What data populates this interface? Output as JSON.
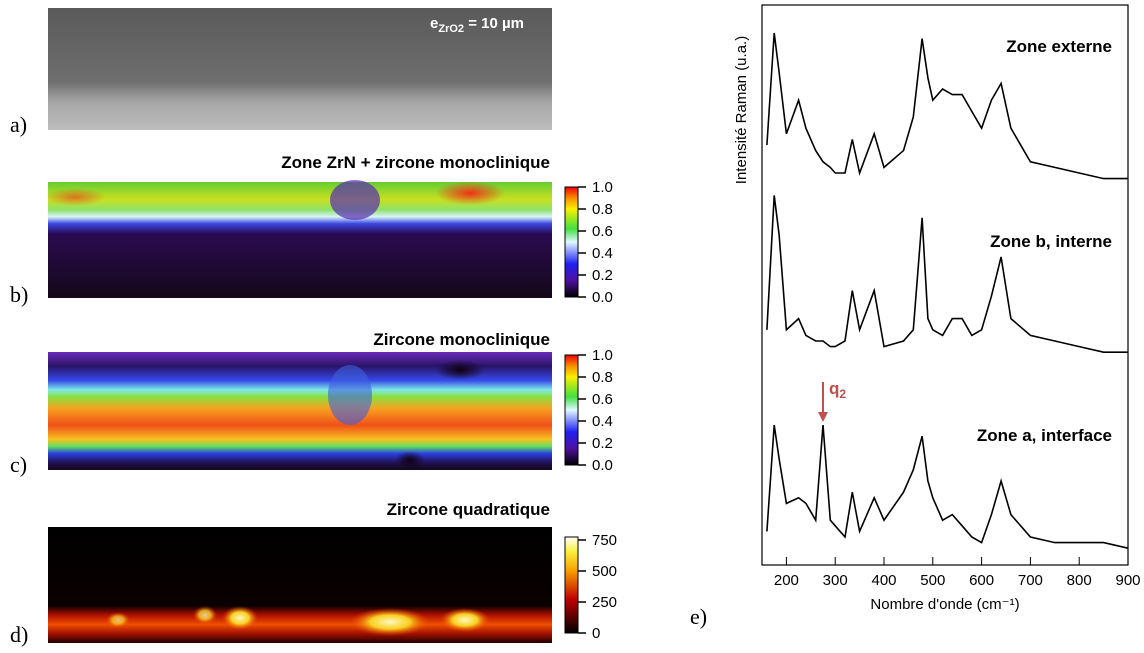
{
  "panels": {
    "labels": [
      "a)",
      "b)",
      "c)",
      "d)",
      "e)"
    ],
    "scale_label": {
      "text": "e",
      "sub": "ZrO2",
      "rest": " = 10 µm"
    }
  },
  "chart_data": [
    {
      "type": "heatmap",
      "title": "Zone ZrN + zircone monoclinique",
      "ylim": [
        0,
        1
      ],
      "yticks": [
        {
          "value": 1,
          "label": "1.0"
        },
        {
          "value": 0.8,
          "label": "0.8"
        },
        {
          "value": 0.6,
          "label": "0.6"
        },
        {
          "value": 0.4,
          "label": "0.4"
        },
        {
          "value": 0.2,
          "label": "0.2"
        },
        {
          "value": 0,
          "label": "0.0"
        }
      ]
    },
    {
      "type": "heatmap",
      "title": "Zircone monoclinique",
      "ylim": [
        0,
        1
      ],
      "yticks": [
        {
          "value": 1,
          "label": "1.0"
        },
        {
          "value": 0.8,
          "label": "0.8"
        },
        {
          "value": 0.6,
          "label": "0.6"
        },
        {
          "value": 0.4,
          "label": "0.4"
        },
        {
          "value": 0.2,
          "label": "0.2"
        },
        {
          "value": 0,
          "label": "0.0"
        }
      ]
    },
    {
      "type": "heatmap",
      "title": "Zircone quadratique",
      "ylim": [
        0,
        750
      ],
      "yticks": [
        750,
        500,
        250,
        0
      ]
    },
    {
      "type": "line",
      "xlabel": "Nombre d'onde (cm⁻¹)",
      "ylabel": "Intensité Raman (u.a.)",
      "xlim": [
        150,
        900
      ],
      "xticks": [
        200,
        300,
        400,
        500,
        600,
        700,
        800,
        900
      ],
      "ylim": [
        0,
        100
      ],
      "x": [
        160,
        175,
        185,
        200,
        225,
        240,
        260,
        275,
        290,
        300,
        320,
        335,
        350,
        380,
        400,
        440,
        460,
        478,
        490,
        500,
        520,
        540,
        560,
        580,
        600,
        620,
        640,
        660,
        700,
        750,
        800,
        850,
        900
      ],
      "series": [
        {
          "name": "Zone externe",
          "color": "#000000",
          "values": [
            75,
            95,
            88,
            77,
            83,
            78,
            74,
            72,
            71,
            70,
            70,
            76,
            70,
            77,
            71,
            74,
            80,
            94,
            87,
            83,
            85,
            84,
            84,
            81,
            78,
            83,
            86,
            78,
            72,
            71,
            70,
            69,
            69
          ]
        },
        {
          "name": "Zone b, interne",
          "color": "#000000",
          "values": [
            42,
            66,
            59,
            42,
            44,
            41,
            40,
            40,
            39,
            39,
            40,
            49,
            42,
            49,
            39,
            40,
            42,
            62,
            44,
            42,
            41,
            44,
            44,
            41,
            42,
            48,
            55,
            44,
            41,
            40,
            39,
            38,
            38
          ]
        },
        {
          "name": "Zone a, interface",
          "color": "#000000",
          "values": [
            6,
            25,
            19,
            11,
            12,
            11,
            8,
            25,
            8,
            7,
            5,
            13,
            6,
            12,
            8,
            13,
            17,
            23,
            15,
            12,
            8,
            9,
            7,
            5,
            4,
            9,
            15,
            9,
            5,
            4,
            4,
            4,
            3
          ]
        }
      ],
      "annotation": {
        "text": "q",
        "sub": "2",
        "x": 275,
        "color": "#c0504d"
      }
    }
  ]
}
